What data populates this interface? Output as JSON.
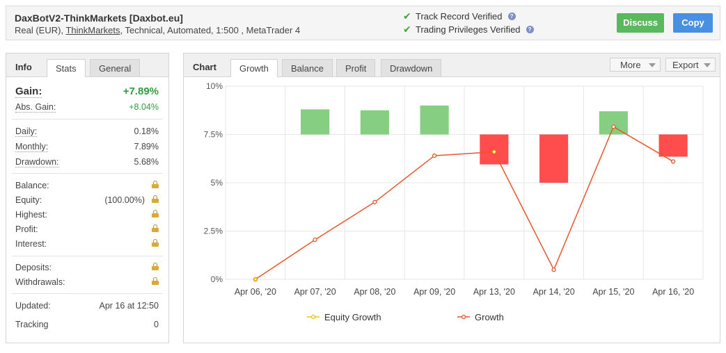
{
  "header": {
    "title": "DaxBotV2-ThinkMarkets [Daxbot.eu]",
    "sub_prefix": "Real (EUR), ",
    "broker": "ThinkMarkets",
    "sub_suffix": ", Technical, Automated, 1:500 , MetaTrader 4",
    "track_record": "Track Record Verified",
    "trading_privileges": "Trading Privileges Verified",
    "help_glyph": "?",
    "discuss_label": "Discuss",
    "copy_label": "Copy"
  },
  "info": {
    "label": "Info",
    "tabs": [
      "Stats",
      "General"
    ],
    "gain": {
      "label": "Gain:",
      "value": "+7.89%"
    },
    "abs_gain": {
      "label": "Abs. Gain:",
      "value": "+8.04%"
    },
    "daily": {
      "label": "Daily:",
      "value": "0.18%"
    },
    "monthly": {
      "label": "Monthly:",
      "value": "7.89%"
    },
    "drawdown": {
      "label": "Drawdown:",
      "value": "5.68%"
    },
    "balance": {
      "label": "Balance:"
    },
    "equity": {
      "label": "Equity:",
      "value": "(100.00%)"
    },
    "highest": {
      "label": "Highest:"
    },
    "profit": {
      "label": "Profit:"
    },
    "interest": {
      "label": "Interest:"
    },
    "deposits": {
      "label": "Deposits:"
    },
    "withdrawals": {
      "label": "Withdrawals:"
    },
    "updated": {
      "label": "Updated:",
      "value": "Apr 16 at 12:50"
    },
    "tracking": {
      "label": "Tracking",
      "value": "0"
    }
  },
  "chart_panel": {
    "label": "Chart",
    "tabs": [
      "Growth",
      "Balance",
      "Profit",
      "Drawdown"
    ],
    "more_label": "More",
    "export_label": "Export"
  },
  "chart_data": {
    "type": "bar+line",
    "categories": [
      "Apr 06, '20",
      "Apr 07, '20",
      "Apr 08, '20",
      "Apr 09, '20",
      "Apr 13, '20",
      "Apr 14, '20",
      "Apr 15, '20",
      "Apr 16, '20"
    ],
    "yticks": [
      "0%",
      "2.5%",
      "5%",
      "7.5%",
      "10%"
    ],
    "ylim": [
      0,
      10
    ],
    "floating_bars": [
      {
        "low": 7.5,
        "high": 7.5
      },
      {
        "low": 7.5,
        "high": 8.8
      },
      {
        "low": 7.5,
        "high": 8.75
      },
      {
        "low": 7.5,
        "high": 9.0
      },
      {
        "low": 5.95,
        "high": 7.5
      },
      {
        "low": 5.0,
        "high": 7.5
      },
      {
        "low": 7.5,
        "high": 8.7
      },
      {
        "low": 6.35,
        "high": 7.5
      }
    ],
    "series": [
      {
        "name": "Equity Growth",
        "values": [
          0,
          null,
          null,
          null,
          6.6,
          null,
          null,
          null
        ]
      },
      {
        "name": "Growth",
        "values": [
          0,
          2.05,
          4.0,
          6.4,
          6.6,
          0.5,
          7.9,
          6.1
        ]
      }
    ],
    "colors": {
      "up": "#86cf82",
      "down": "#ff4d4d",
      "growth": "#e8562a",
      "equity": "#f4c20d",
      "grid": "#e6e6e6"
    },
    "legend": "bottom",
    "grid": true
  }
}
